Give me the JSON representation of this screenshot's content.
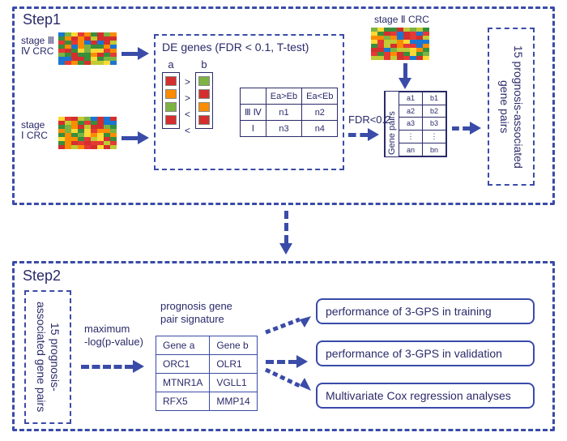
{
  "step1_label": "Step1",
  "step2_label": "Step2",
  "heatmap_colors": [
    "#d32f2f",
    "#e53935",
    "#fb8c00",
    "#fdd835",
    "#c0ca33",
    "#7cb342",
    "#388e3c",
    "#1976d2"
  ],
  "hm1_label_line1": "stage Ⅲ",
  "hm1_label_line2": "Ⅳ CRC",
  "hm2_label_line1": "stage",
  "hm2_label_line2": "Ⅰ CRC",
  "hm3_label": "stage Ⅱ CRC",
  "de_title": "DE genes (FDR < 0.1, T-test)",
  "ab": {
    "a": "a",
    "b": "b",
    "cmp": [
      ">",
      ">",
      "<",
      "<"
    ],
    "a_colors": [
      "#d32f2f",
      "#fb8c00",
      "#7cb342",
      "#d32f2f"
    ],
    "b_colors": [
      "#7cb342",
      "#d32f2f",
      "#fb8c00",
      "#d32f2f"
    ]
  },
  "grid": {
    "col1": "Ea>Eb",
    "col2": "Ea<Eb",
    "row1": "Ⅲ Ⅳ",
    "row2": "Ⅰ",
    "c11": "n1",
    "c12": "n2",
    "c21": "n3",
    "c22": "n4"
  },
  "fdr_label": "FDR<0.2",
  "gene_pairs": {
    "title": "Gene pairs",
    "rows": [
      [
        "a1",
        "b1"
      ],
      [
        "a2",
        "b2"
      ],
      [
        "a3",
        "b3"
      ],
      [
        "⋮",
        "⋮"
      ],
      [
        "an",
        "bn"
      ]
    ]
  },
  "vbox_text": "15 prognosis-associated gene pairs",
  "max_label_l1": "maximum",
  "max_label_l2": "-log(p-value)",
  "sig_title_l1": "prognosis gene",
  "sig_title_l2": "pair signature",
  "sig_table": {
    "header": [
      "Gene a",
      "Gene b"
    ],
    "rows": [
      [
        "ORC1",
        "OLR1"
      ],
      [
        "MTNR1A",
        "VGLL1"
      ],
      [
        "RFX5",
        "MMP14"
      ]
    ]
  },
  "results": {
    "r1": "performance of 3-GPS in training",
    "r2": "performance of 3-GPS in validation",
    "r3": "Multivariate Cox regression analyses"
  },
  "colors": {
    "dash": "#3a4ba8",
    "text": "#2a2a6a"
  }
}
